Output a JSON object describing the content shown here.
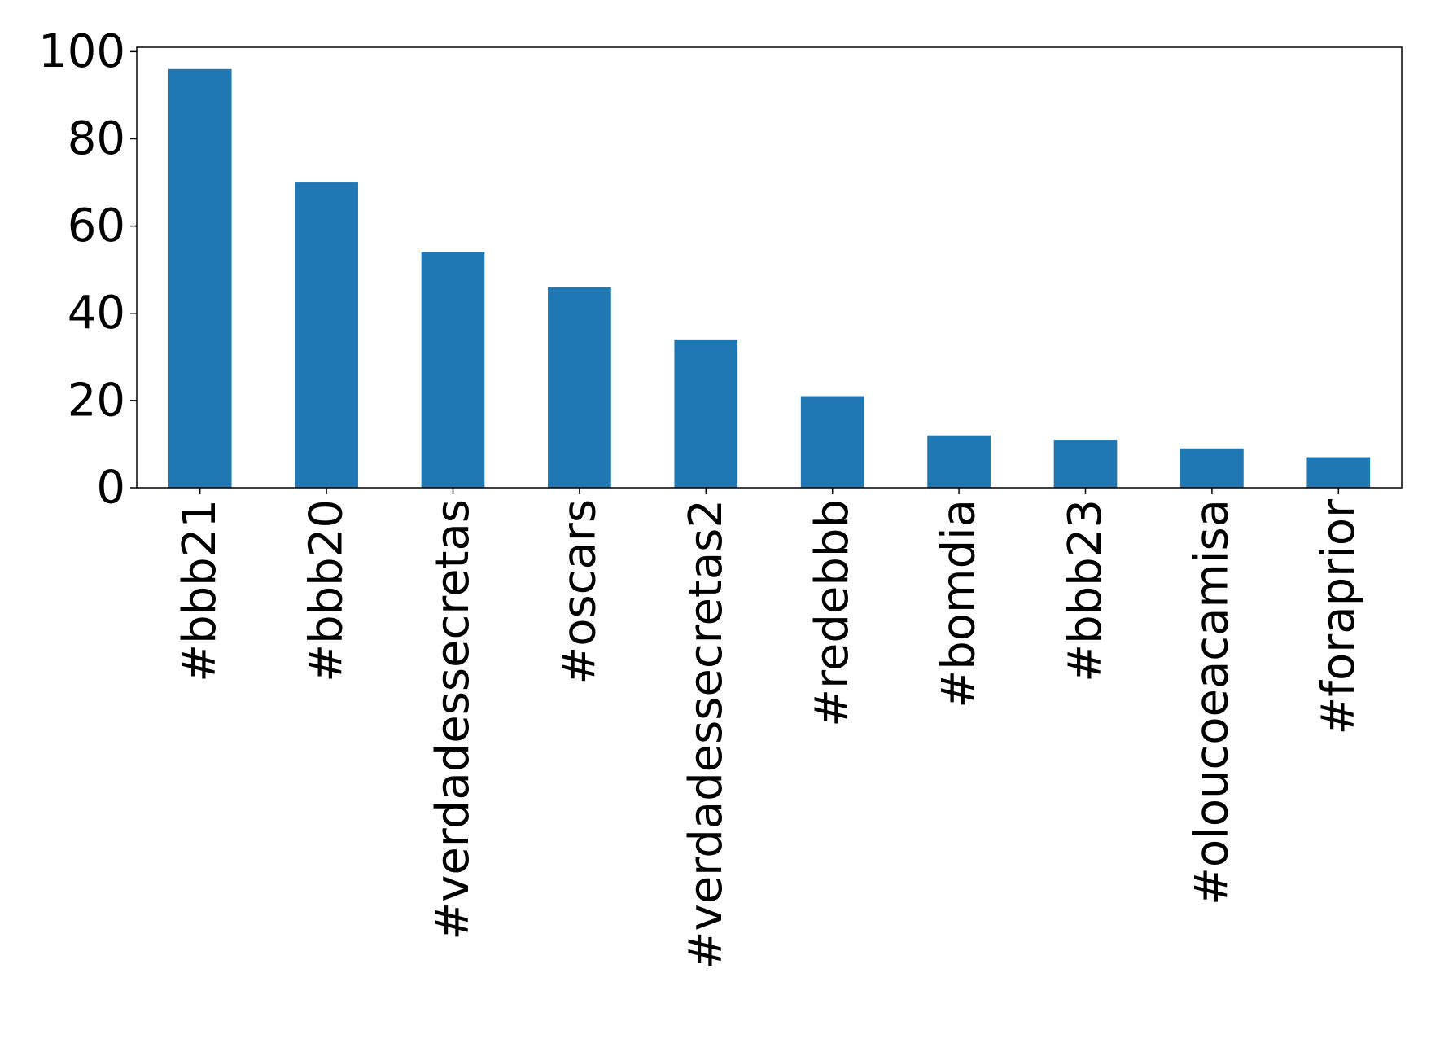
{
  "chart_data": {
    "type": "bar",
    "title": "",
    "xlabel": "",
    "ylabel": "",
    "categories": [
      "#bbb21",
      "#bbb20",
      "#verdadessecretas",
      "#oscars",
      "#verdadessecretas2",
      "#redebbb",
      "#bomdia",
      "#bbb23",
      "#oloucoeacamisa",
      "#foraprior"
    ],
    "values": [
      96,
      70,
      54,
      46,
      34,
      21,
      12,
      11,
      9,
      7
    ],
    "ylim": [
      0,
      101
    ],
    "yticks": [
      0,
      20,
      40,
      60,
      80,
      100
    ],
    "grid": false,
    "legend": false,
    "colors": {
      "bar": "#1f77b4",
      "axis": "#000000"
    }
  }
}
